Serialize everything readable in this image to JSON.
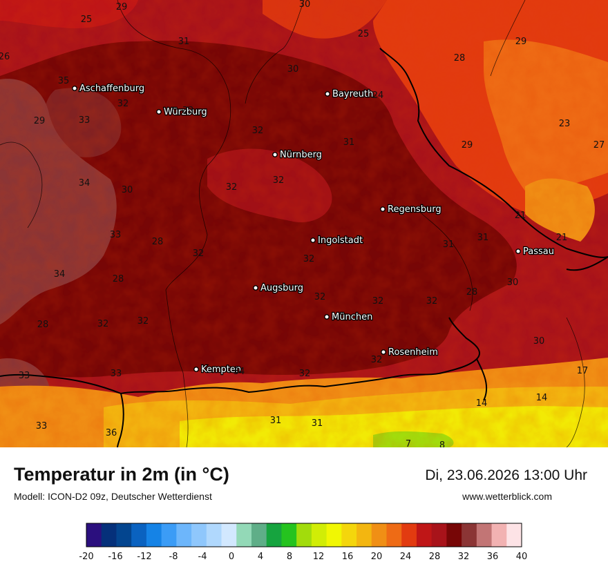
{
  "header": {
    "title": "Temperatur in 2m (in °C)",
    "model": "Modell: ICON-D2 09z, Deutscher Wetterdienst",
    "datetime": "Di, 23.06.2026 13:00 Uhr",
    "website": "www.wetterblick.com"
  },
  "cities": [
    {
      "name": "Aschaffenburg"
    },
    {
      "name": "Würzburg"
    },
    {
      "name": "Bayreuth"
    },
    {
      "name": "Nürnberg"
    },
    {
      "name": "Regensburg"
    },
    {
      "name": "Ingolstadt"
    },
    {
      "name": "Passau"
    },
    {
      "name": "Augsburg"
    },
    {
      "name": "München"
    },
    {
      "name": "Rosenheim"
    },
    {
      "name": "Kempten"
    }
  ],
  "temperature_labels": [
    "29",
    "30",
    "25",
    "31",
    "26",
    "30",
    "35",
    "32",
    "25",
    "29",
    "28",
    "24",
    "33",
    "33",
    "29",
    "32",
    "31",
    "23",
    "29",
    "27",
    "34",
    "30",
    "32",
    "32",
    "21",
    "33",
    "28",
    "32",
    "31",
    "31",
    "21",
    "32",
    "34",
    "28",
    "30",
    "32",
    "32",
    "32",
    "28",
    "28",
    "32",
    "32",
    "30",
    "33",
    "33",
    "17",
    "32",
    "32",
    "34",
    "14",
    "14",
    "33",
    "31",
    "31",
    "36",
    "7",
    "8"
  ],
  "legend": {
    "ticks": [
      "-20",
      "-16",
      "-12",
      "-8",
      "-4",
      "0",
      "4",
      "8",
      "12",
      "16",
      "20",
      "24",
      "28",
      "32",
      "36",
      "40"
    ],
    "colors": [
      "#2b0f7e",
      "#05307a",
      "#03458f",
      "#0a62c0",
      "#1583e6",
      "#3b9cf6",
      "#6db6fb",
      "#8fc7fc",
      "#b0d8fd",
      "#d2e8fe",
      "#93d9b7",
      "#5fae88",
      "#16a43f",
      "#25c31f",
      "#a2dc0c",
      "#d1ed06",
      "#f1f703",
      "#f4d60c",
      "#f3b610",
      "#f08f15",
      "#ee6b15",
      "#e23b10",
      "#bf1617",
      "#a8131a",
      "#770606",
      "#8b3535",
      "#c27575",
      "#f2b2b2",
      "#fde3e6"
    ]
  }
}
